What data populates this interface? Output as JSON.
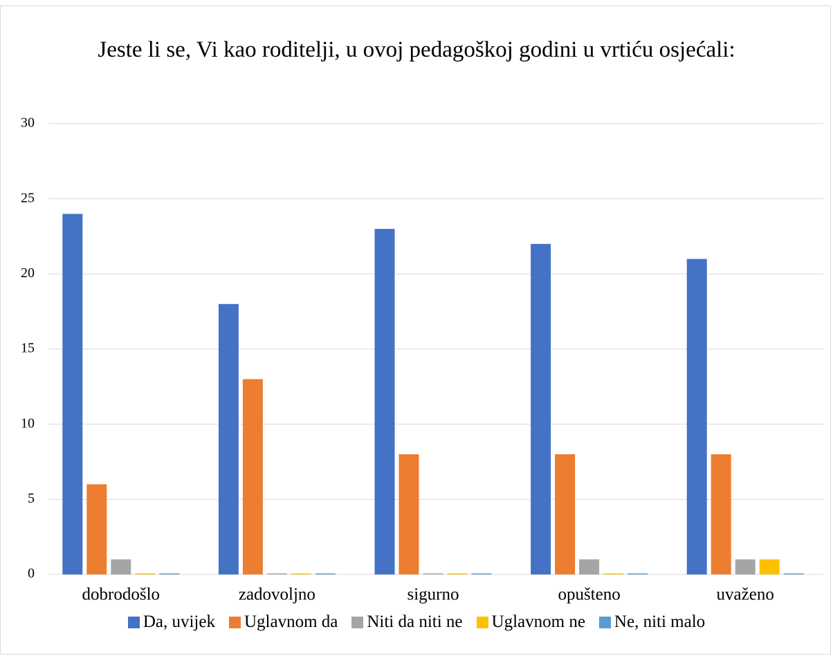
{
  "chart_data": {
    "type": "bar",
    "title": "Jeste li se, Vi kao roditelji, u ovoj pedagoškoj godini u vrtiću osjećali:",
    "categories": [
      "dobrodošlo",
      "zadovoljno",
      "sigurno",
      "opušteno",
      "uvaženo"
    ],
    "series": [
      {
        "name": "Da, uvijek",
        "color": "#4472c4",
        "values": [
          24,
          18,
          23,
          22,
          21
        ]
      },
      {
        "name": "Uglavnom da",
        "color": "#ed7d31",
        "values": [
          6,
          13,
          8,
          8,
          8
        ]
      },
      {
        "name": "Niti da niti ne",
        "color": "#a5a5a5",
        "values": [
          1,
          0,
          0,
          1,
          1
        ]
      },
      {
        "name": "Uglavnom ne",
        "color": "#ffc000",
        "values": [
          0,
          0,
          0,
          0,
          1
        ]
      },
      {
        "name": "Ne, niti malo",
        "color": "#5b9bd5",
        "values": [
          0,
          0,
          0,
          0,
          0
        ]
      }
    ],
    "ylim": [
      0,
      30
    ],
    "yticks": [
      0,
      5,
      10,
      15,
      20,
      25,
      30
    ],
    "grid": true,
    "legend": "bottom"
  }
}
